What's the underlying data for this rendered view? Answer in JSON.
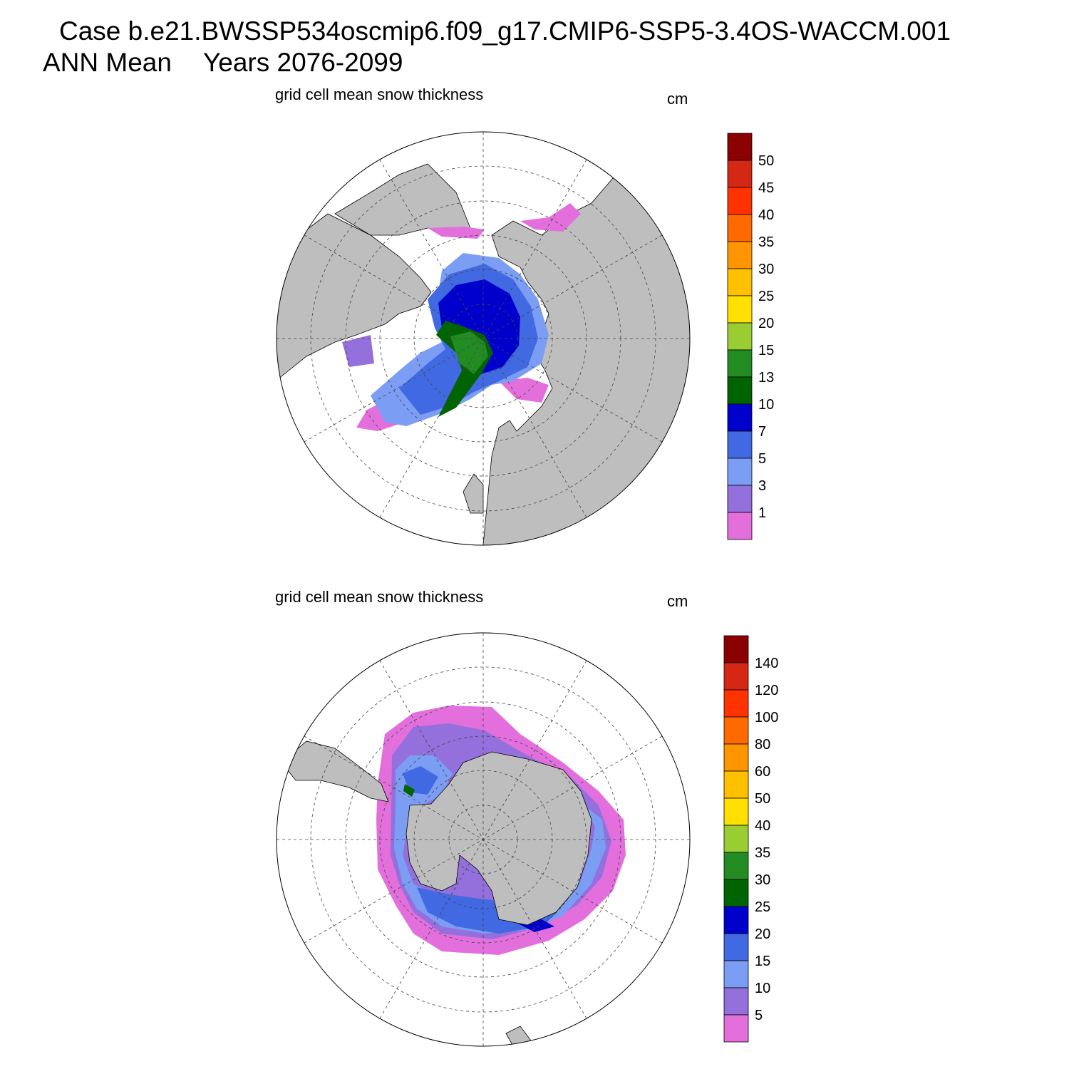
{
  "header": {
    "case": "Case b.e21.BWSSP534oscmip6.f09_g17.CMIP6-SSP5-3.4OS-WACCM.001",
    "season": "ANN Mean",
    "years": "Years 2076-2099"
  },
  "panels": [
    {
      "title": "grid cell mean snow thickness",
      "units": "cm",
      "hemisphere": "north",
      "colorbar": {
        "labels": [
          "1",
          "3",
          "5",
          "7",
          "10",
          "13",
          "15",
          "20",
          "25",
          "30",
          "35",
          "40",
          "45",
          "50"
        ],
        "colors": [
          "#e36fdd",
          "#9370db",
          "#7b9ef4",
          "#4169e1",
          "#0000cd",
          "#006400",
          "#228b22",
          "#9acd32",
          "#ffe000",
          "#ffc000",
          "#ff9500",
          "#ff6a00",
          "#ff3300",
          "#d52814",
          "#8b0000"
        ]
      }
    },
    {
      "title": "grid cell mean snow thickness",
      "units": "cm",
      "hemisphere": "south",
      "colorbar": {
        "labels": [
          "5",
          "10",
          "15",
          "20",
          "25",
          "30",
          "35",
          "40",
          "50",
          "60",
          "80",
          "100",
          "120",
          "140"
        ],
        "colors": [
          "#e36fdd",
          "#9370db",
          "#7b9ef4",
          "#4169e1",
          "#0000cd",
          "#006400",
          "#228b22",
          "#9acd32",
          "#ffe000",
          "#ffc000",
          "#ff9500",
          "#ff6a00",
          "#ff3300",
          "#d52814",
          "#8b0000"
        ]
      }
    }
  ],
  "colors": {
    "land": "#bebebe",
    "ocean": "#ffffff",
    "grid": "#444444"
  }
}
